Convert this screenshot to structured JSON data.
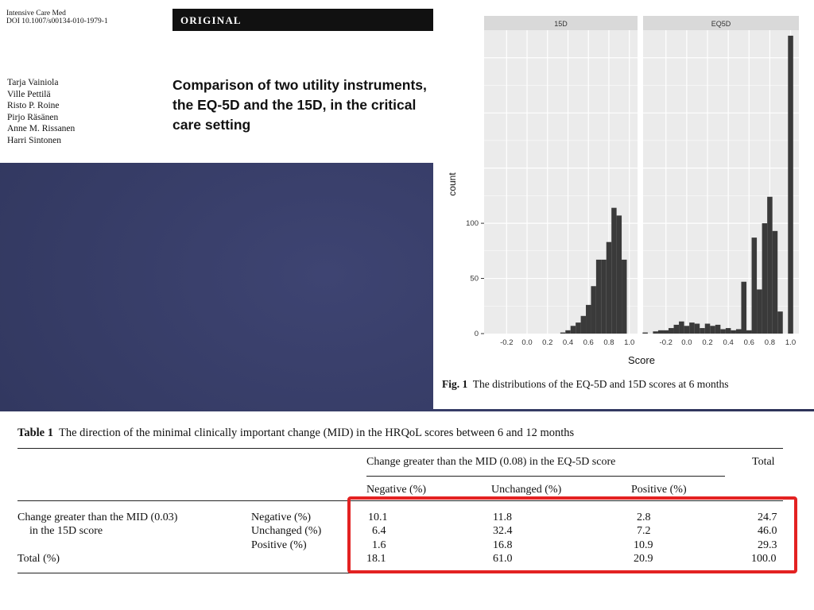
{
  "header": {
    "journal": "Intensive Care Med",
    "doi": "DOI 10.1007/s00134-010-1979-1",
    "section_label": "ORIGINAL",
    "authors": [
      "Tarja Vainiola",
      "Ville Pettilä",
      "Risto P. Roine",
      "Pirjo Räsänen",
      "Anne M. Rissanen",
      "Harri Sintonen"
    ],
    "title_lines": [
      "Comparison of two utility instruments,",
      "the EQ-5D and the 15D, in the critical",
      "care setting"
    ]
  },
  "figure": {
    "caption_label": "Fig. 1",
    "caption_text": "The distributions of the EQ-5D and 15D scores at 6 months"
  },
  "chart_data": {
    "type": "bar",
    "colors": {
      "bar": "#3a3a3a",
      "panel_bg": "#ebebeb",
      "strip_bg": "#d9d9d9",
      "grid": "#ffffff"
    },
    "ylabel": "count",
    "xlabel": "Score",
    "ylim": [
      0,
      275
    ],
    "yticks": [
      0,
      50,
      100
    ],
    "xlim": [
      -0.42,
      1.08
    ],
    "xticks": [
      -0.2,
      0.0,
      0.2,
      0.4,
      0.6,
      0.8,
      1.0
    ],
    "xtick_labels": [
      "-0.2",
      "0.0",
      "0.2",
      "0.4",
      "0.6",
      "0.8",
      "1.0"
    ],
    "bin_width": 0.05,
    "grid": true,
    "panels": [
      {
        "name": "15D",
        "bins": [
          {
            "x": 0.35,
            "count": 1
          },
          {
            "x": 0.4,
            "count": 3
          },
          {
            "x": 0.45,
            "count": 7
          },
          {
            "x": 0.5,
            "count": 10
          },
          {
            "x": 0.55,
            "count": 16
          },
          {
            "x": 0.6,
            "count": 26
          },
          {
            "x": 0.65,
            "count": 43
          },
          {
            "x": 0.7,
            "count": 67
          },
          {
            "x": 0.75,
            "count": 67
          },
          {
            "x": 0.8,
            "count": 83
          },
          {
            "x": 0.85,
            "count": 114
          },
          {
            "x": 0.9,
            "count": 107
          },
          {
            "x": 0.95,
            "count": 67
          }
        ]
      },
      {
        "name": "EQ5D",
        "bins": [
          {
            "x": -0.4,
            "count": 1
          },
          {
            "x": -0.3,
            "count": 2
          },
          {
            "x": -0.25,
            "count": 3
          },
          {
            "x": -0.2,
            "count": 3
          },
          {
            "x": -0.15,
            "count": 5
          },
          {
            "x": -0.1,
            "count": 8
          },
          {
            "x": -0.05,
            "count": 11
          },
          {
            "x": 0.0,
            "count": 7
          },
          {
            "x": 0.05,
            "count": 10
          },
          {
            "x": 0.1,
            "count": 9
          },
          {
            "x": 0.15,
            "count": 5
          },
          {
            "x": 0.2,
            "count": 9
          },
          {
            "x": 0.25,
            "count": 7
          },
          {
            "x": 0.3,
            "count": 8
          },
          {
            "x": 0.35,
            "count": 4
          },
          {
            "x": 0.4,
            "count": 5
          },
          {
            "x": 0.45,
            "count": 3
          },
          {
            "x": 0.5,
            "count": 4
          },
          {
            "x": 0.55,
            "count": 47
          },
          {
            "x": 0.6,
            "count": 3
          },
          {
            "x": 0.65,
            "count": 87
          },
          {
            "x": 0.7,
            "count": 40
          },
          {
            "x": 0.75,
            "count": 100
          },
          {
            "x": 0.8,
            "count": 124
          },
          {
            "x": 0.85,
            "count": 93
          },
          {
            "x": 0.9,
            "count": 20
          },
          {
            "x": 0.95,
            "count": 0
          },
          {
            "x": 1.0,
            "count": 270
          }
        ]
      }
    ]
  },
  "table": {
    "caption_label": "Table 1",
    "caption_text": "The direction of the minimal clinically important change (MID) in the HRQoL scores between 6 and 12 months",
    "group_header": "Change greater than the MID (0.08) in the EQ-5D score",
    "total_header": "Total",
    "subheaders": [
      "Negative (%)",
      "Unchanged (%)",
      "Positive (%)"
    ],
    "row_group_label_1": "Change greater than the MID (0.03)",
    "row_group_label_2": "in the 15D score",
    "rows": [
      {
        "label": "Negative (%)",
        "values": [
          "10.1",
          "11.8",
          "2.8"
        ],
        "total": "24.7"
      },
      {
        "label": "Unchanged (%)",
        "values": [
          "6.4",
          "32.4",
          "7.2"
        ],
        "total": "46.0"
      },
      {
        "label": "Positive (%)",
        "values": [
          "1.6",
          "16.8",
          "10.9"
        ],
        "total": "29.3"
      }
    ],
    "total_row": {
      "label": "Total (%)",
      "values": [
        "18.1",
        "61.0",
        "20.9"
      ],
      "total": "100.0"
    },
    "highlight_color": "#e32222"
  }
}
